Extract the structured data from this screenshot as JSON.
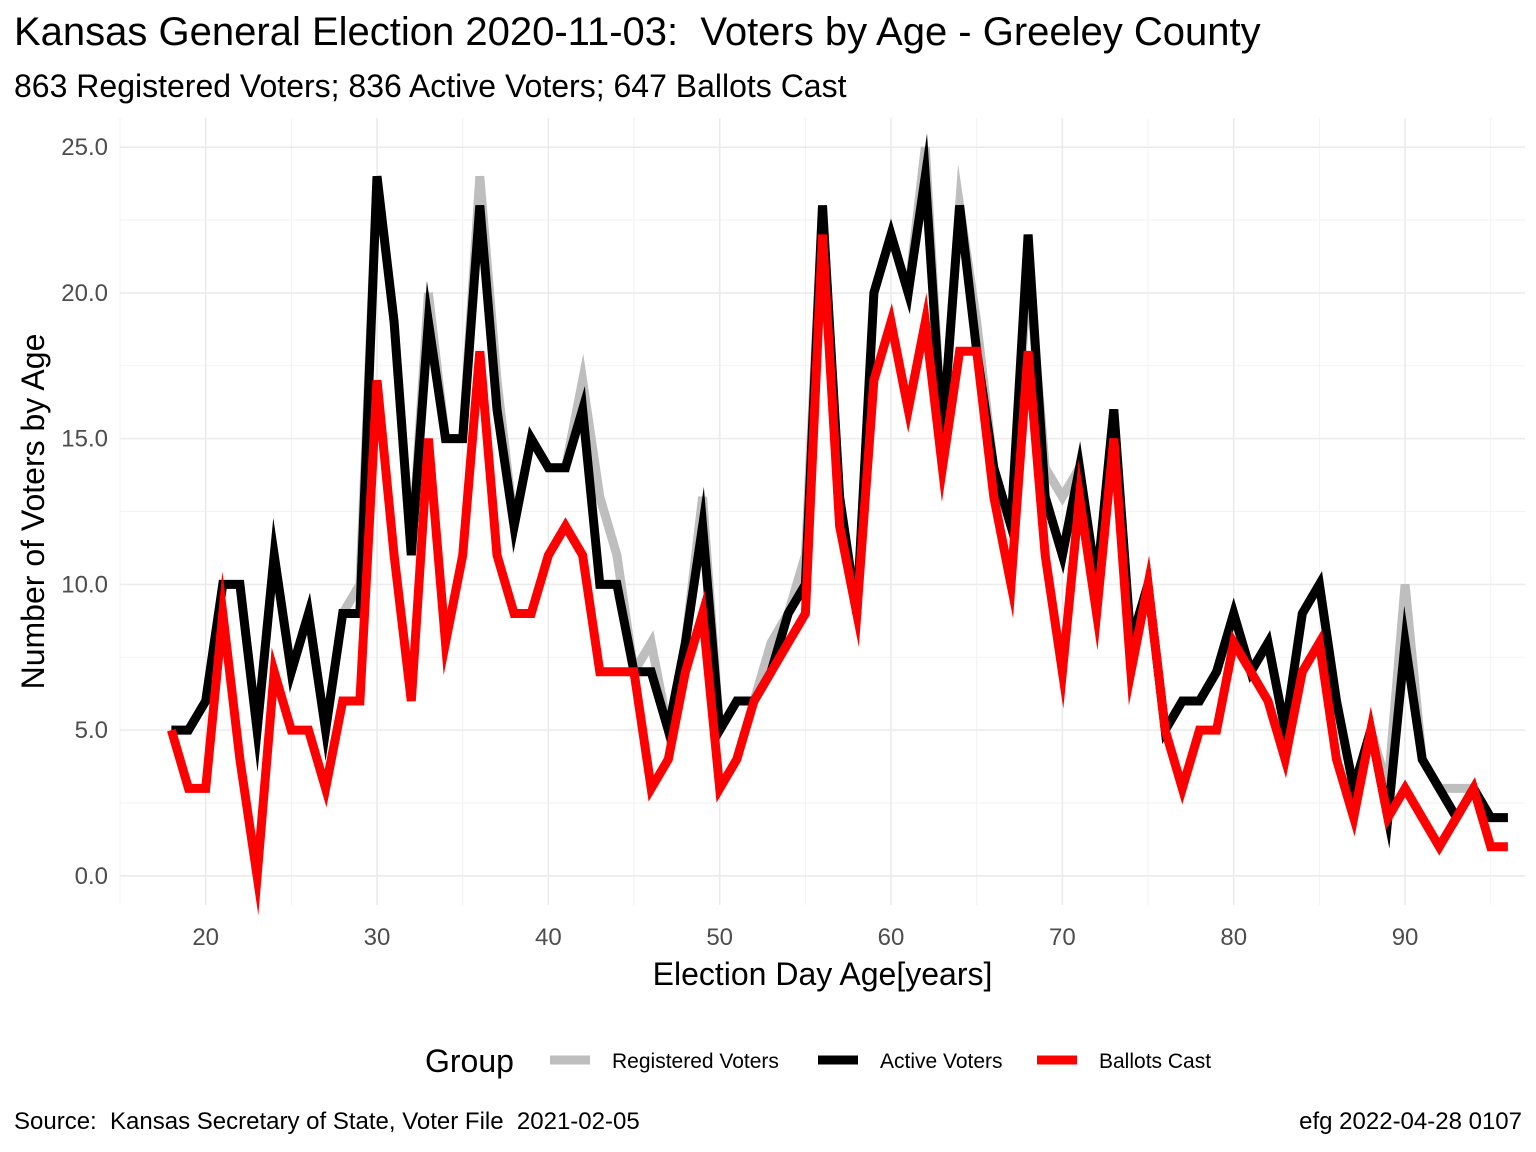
{
  "title": "Kansas General Election 2020-11-03:  Voters by Age - Greeley County",
  "subtitle": "863 Registered Voters; 836 Active Voters; 647 Ballots Cast",
  "caption_left": "Source:  Kansas Secretary of State, Voter File  2021-02-05",
  "caption_right": "efg 2022-04-28 0107",
  "chart_data": {
    "type": "line",
    "xlabel": "Election Day Age[years]",
    "ylabel": "Number of Voters by Age",
    "xlim": [
      15,
      97
    ],
    "ylim": [
      -1,
      26
    ],
    "x_ticks": [
      20,
      30,
      40,
      50,
      60,
      70,
      80,
      90
    ],
    "y_ticks": [
      0,
      5,
      10,
      15,
      20,
      25
    ],
    "y_tick_labels": [
      "0.0",
      "5.0",
      "10.0",
      "15.0",
      "20.0",
      "25.0"
    ],
    "grid": true,
    "legend": {
      "title": "Group",
      "position": "bottom"
    },
    "x": [
      18,
      19,
      20,
      21,
      22,
      23,
      24,
      25,
      26,
      27,
      28,
      29,
      30,
      31,
      32,
      33,
      34,
      35,
      36,
      37,
      38,
      39,
      40,
      41,
      42,
      43,
      44,
      45,
      46,
      47,
      48,
      49,
      50,
      51,
      52,
      53,
      54,
      55,
      56,
      57,
      58,
      59,
      60,
      61,
      62,
      63,
      64,
      65,
      66,
      67,
      68,
      69,
      70,
      71,
      72,
      73,
      74,
      75,
      76,
      77,
      78,
      79,
      80,
      81,
      82,
      83,
      84,
      85,
      86,
      87,
      88,
      89,
      90,
      91,
      92,
      93,
      94,
      95,
      96
    ],
    "series": [
      {
        "name": "Registered Voters",
        "color": "#bebebe",
        "values": [
          5,
          5,
          6,
          10,
          10,
          5,
          11,
          7,
          9,
          5,
          9,
          10,
          24,
          19,
          11,
          20,
          15,
          15,
          24,
          17,
          12,
          15,
          14,
          14,
          17,
          13,
          11,
          7,
          8,
          5,
          8,
          13,
          5,
          6,
          6,
          8,
          9,
          11,
          23,
          13,
          9,
          20,
          22,
          20,
          25,
          15,
          23,
          19,
          14,
          12,
          21,
          14,
          13,
          14,
          10,
          16,
          8,
          10,
          5,
          6,
          6,
          7,
          9,
          7,
          8,
          5,
          9,
          10,
          6,
          3,
          5,
          3,
          10,
          4,
          3,
          3,
          3,
          2,
          2
        ]
      },
      {
        "name": "Active Voters",
        "color": "#000000",
        "values": [
          5,
          5,
          6,
          10,
          10,
          5,
          11,
          7,
          9,
          5,
          9,
          9,
          24,
          19,
          11,
          19,
          15,
          15,
          23,
          16,
          12,
          15,
          14,
          14,
          16,
          10,
          10,
          7,
          7,
          5,
          8,
          12,
          5,
          6,
          6,
          7,
          9,
          10,
          23,
          13,
          9,
          20,
          22,
          20,
          24,
          15,
          23,
          18,
          14,
          12,
          22,
          13,
          11,
          14,
          10,
          16,
          8,
          10,
          5,
          6,
          6,
          7,
          9,
          7,
          8,
          5,
          9,
          10,
          6,
          3,
          5,
          2,
          8,
          4,
          3,
          2,
          3,
          2,
          2
        ]
      },
      {
        "name": "Ballots Cast",
        "color": "#ff0000",
        "values": [
          5,
          3,
          3,
          9,
          4,
          0,
          7,
          5,
          5,
          3,
          6,
          6,
          17,
          11,
          6,
          15,
          8,
          11,
          18,
          11,
          9,
          9,
          11,
          12,
          11,
          7,
          7,
          7,
          3,
          4,
          7,
          9,
          3,
          4,
          6,
          7,
          8,
          9,
          22,
          12,
          9,
          17,
          19,
          16,
          19,
          14,
          18,
          18,
          13,
          10,
          18,
          11,
          7,
          13,
          9,
          15,
          7,
          10,
          5,
          3,
          5,
          5,
          8,
          7,
          6,
          4,
          7,
          8,
          4,
          2,
          5,
          2,
          3,
          2,
          1,
          2,
          3,
          1,
          1
        ]
      }
    ]
  }
}
